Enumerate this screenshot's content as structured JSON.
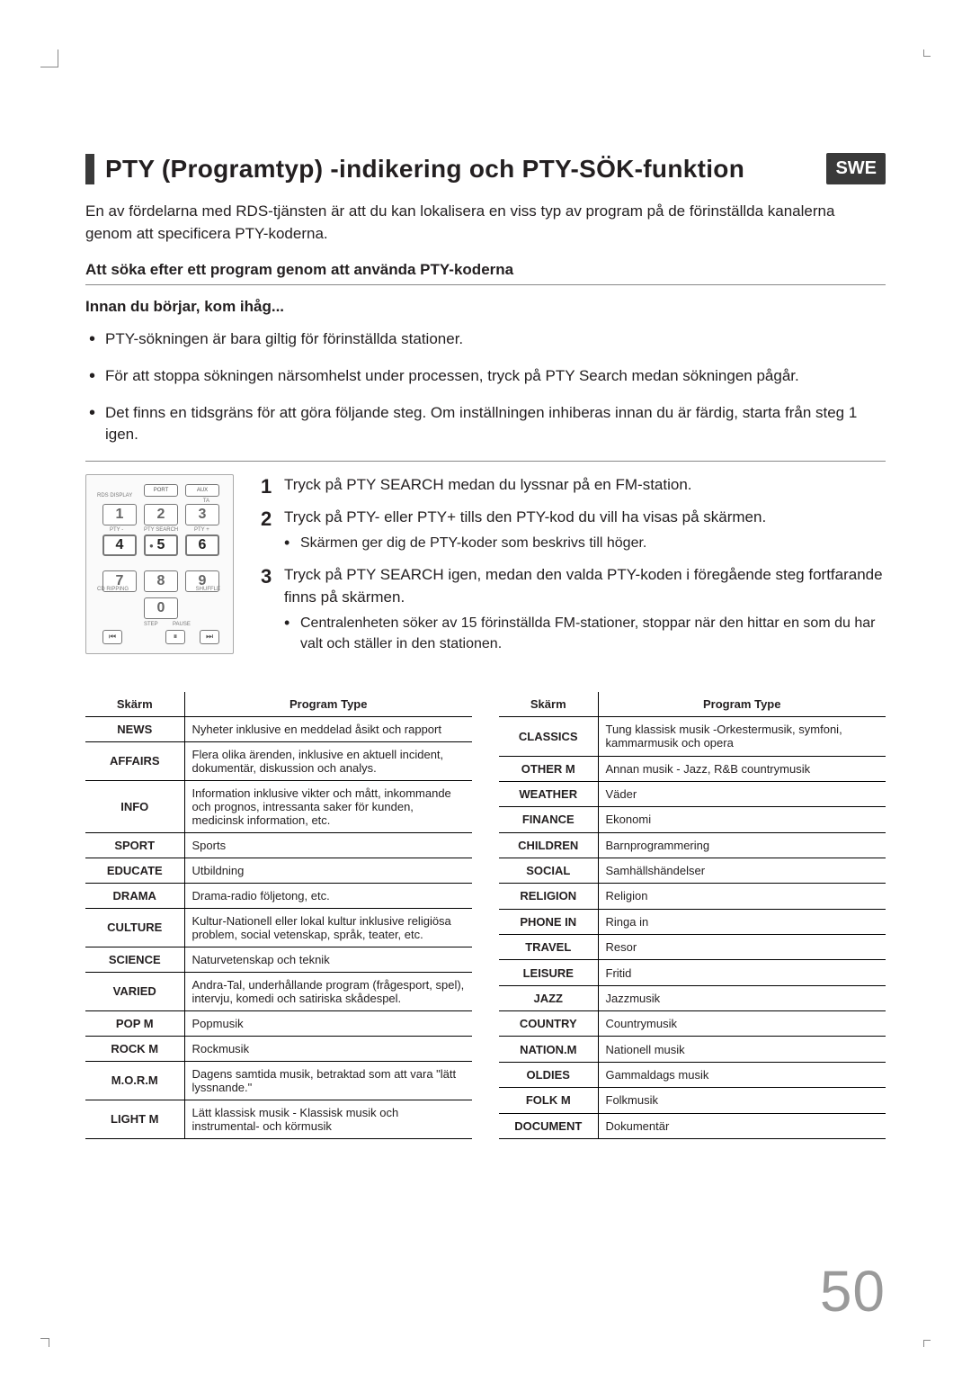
{
  "heading": "PTY (Programtyp) -indikering och PTY-SÖK-funktion",
  "lang_badge": "SWE",
  "intro": "En av fördelarna med RDS-tjänsten är att du kan lokalisera en viss typ av program på de förinställda kanalerna genom att specificera PTY-koderna.",
  "subhead1": "Att söka efter ett program genom att använda PTY-koderna",
  "subhead2": "Innan du börjar, kom ihåg...",
  "bullets": [
    "PTY-sökningen är bara giltig för förinställda stationer.",
    "För att stoppa sökningen närsomhelst under processen, tryck på PTY Search medan sökningen pågår.",
    "Det finns en tidsgräns för att göra följande steg. Om inställningen inhiberas innan du är färdig, starta från steg 1 igen."
  ],
  "steps": [
    {
      "n": "1",
      "text": "Tryck på PTY SEARCH medan du lyssnar på en FM-station.",
      "sub": []
    },
    {
      "n": "2",
      "text": "Tryck på PTY- eller PTY+ tills den PTY-kod du vill ha visas på skärmen.",
      "sub": [
        "Skärmen ger dig de PTY-koder som beskrivs till höger."
      ]
    },
    {
      "n": "3",
      "text": "Tryck på PTY SEARCH igen, medan den valda PTY-koden i föregående steg fortfarande finns på skärmen.",
      "sub": [
        "Centralenheten söker av 15 förinställda FM-stationer, stoppar när den hittar en som du har valt och ställer in den stationen."
      ]
    }
  ],
  "table_headers": {
    "col1": "Skärm",
    "col2": "Program Type"
  },
  "table_left": [
    [
      "NEWS",
      "Nyheter inklusive en meddelad åsikt och rapport"
    ],
    [
      "AFFAIRS",
      "Flera olika ärenden, inklusive en aktuell incident, dokumentär, diskussion och analys."
    ],
    [
      "INFO",
      "Information inklusive vikter och mått, inkommande och prognos, intressanta saker för kunden, medicinsk information, etc."
    ],
    [
      "SPORT",
      "Sports"
    ],
    [
      "EDUCATE",
      "Utbildning"
    ],
    [
      "DRAMA",
      "Drama-radio följetong, etc."
    ],
    [
      "CULTURE",
      "Kultur-Nationell eller lokal kultur inklusive religiösa problem, social vetenskap, språk, teater, etc."
    ],
    [
      "SCIENCE",
      "Naturvetenskap och teknik"
    ],
    [
      "VARIED",
      "Andra-Tal, underhållande program (frågesport, spel), intervju, komedi och satiriska skådespel."
    ],
    [
      "POP M",
      "Popmusik"
    ],
    [
      "ROCK M",
      "Rockmusik"
    ],
    [
      "M.O.R.M",
      "Dagens samtida musik, betraktad som att vara \"lätt lyssnande.\""
    ],
    [
      "LIGHT M",
      "Lätt klassisk musik - Klassisk musik och instrumental- och körmusik"
    ]
  ],
  "table_right": [
    [
      "CLASSICS",
      "Tung klassisk musik -Orkestermusik, symfoni, kammarmusik och opera"
    ],
    [
      "OTHER M",
      "Annan musik - Jazz, R&B countrymusik"
    ],
    [
      "WEATHER",
      "Väder"
    ],
    [
      "FINANCE",
      "Ekonomi"
    ],
    [
      "CHILDREN",
      "Barnprogrammering"
    ],
    [
      "SOCIAL",
      "Samhällshändelser"
    ],
    [
      "RELIGION",
      "Religion"
    ],
    [
      "PHONE IN",
      "Ringa in"
    ],
    [
      "TRAVEL",
      "Resor"
    ],
    [
      "LEISURE",
      "Fritid"
    ],
    [
      "JAZZ",
      "Jazzmusik"
    ],
    [
      "COUNTRY",
      "Countrymusik"
    ],
    [
      "NATION.M",
      "Nationell musik"
    ],
    [
      "OLDIES",
      "Gammaldags musik"
    ],
    [
      "FOLK M",
      "Folkmusik"
    ],
    [
      "DOCUMENT",
      "Dokumentär"
    ]
  ],
  "remote": {
    "labels": {
      "rds": "RDS DISPLAY",
      "port": "PORT",
      "aux": "AUX",
      "ta": "TA",
      "ptym": "PTY -",
      "ptys": "PTY SEARCH",
      "ptyp": "PTY +",
      "cd": "CD RIPPING",
      "shuf": "SHUFFLE",
      "step": "STEP",
      "pause": "PAUSE"
    }
  },
  "page_no": "50"
}
